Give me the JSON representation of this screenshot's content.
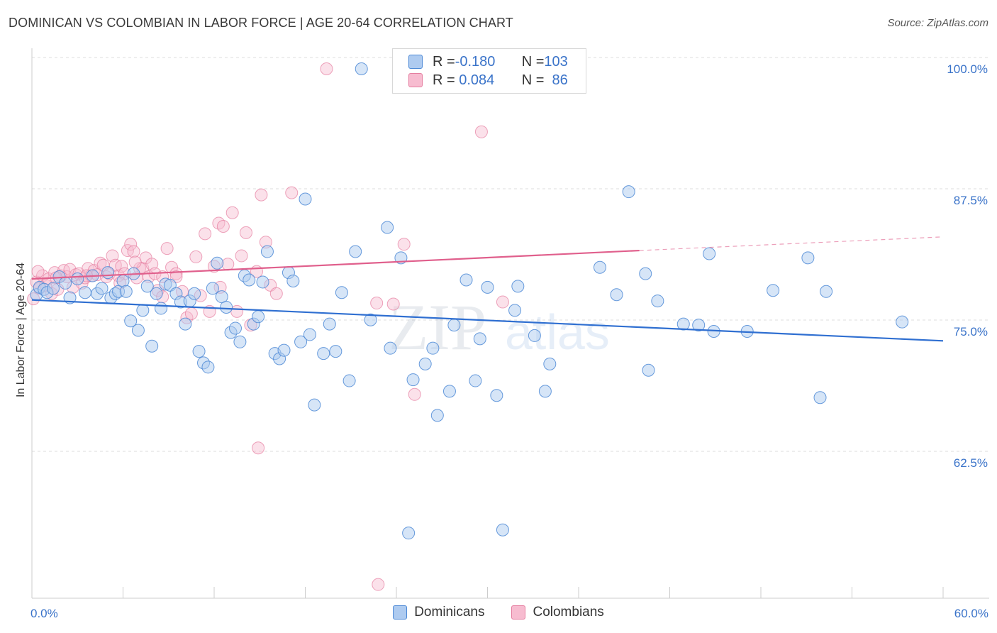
{
  "header": {
    "title": "DOMINICAN VS COLOMBIAN IN LABOR FORCE | AGE 20-64 CORRELATION CHART",
    "source": "Source: ZipAtlas.com"
  },
  "legend": {
    "rows": [
      {
        "r_label": "R = ",
        "r_value": "-0.180",
        "n_label": "N = ",
        "n_value": "103"
      },
      {
        "r_label": "R = ",
        "r_value": " 0.084",
        "n_label": "N = ",
        "n_value": "  86"
      }
    ],
    "bottom": [
      "Dominicans",
      "Colombians"
    ]
  },
  "watermark": {
    "zip": "ZIP",
    "atlas": "atlas"
  },
  "colors": {
    "blue_fill": "#aecbf0",
    "blue_stroke": "#4e8ad6",
    "blue_line": "#2f6fd1",
    "pink_fill": "#f7bcd0",
    "pink_stroke": "#e57ea0",
    "pink_line": "#e05f8c",
    "tick_label": "#3a73c9",
    "grid": "#dddddd"
  },
  "chart_data": {
    "type": "scatter",
    "title": "DOMINICAN VS COLOMBIAN IN LABOR FORCE | AGE 20-64 CORRELATION CHART",
    "xlabel": "",
    "ylabel": "In Labor Force | Age 20-64",
    "xlim": [
      0,
      60
    ],
    "ylim": [
      51,
      102
    ],
    "x_tick_labels": [
      "0.0%",
      "60.0%"
    ],
    "y_ticks": [
      62.5,
      75.0,
      87.5,
      100.0
    ],
    "y_tick_labels": [
      "62.5%",
      "75.0%",
      "87.5%",
      "100.0%"
    ],
    "grid": true,
    "series": [
      {
        "name": "Dominicans",
        "r": -0.18,
        "n": 103,
        "trend": {
          "x": [
            0,
            60
          ],
          "y": [
            78.0,
            74.1
          ]
        },
        "points": [
          [
            0.3,
            78.5
          ],
          [
            0.5,
            79.2
          ],
          [
            0.8,
            79.0
          ],
          [
            1.0,
            78.7
          ],
          [
            1.4,
            79.1
          ],
          [
            1.8,
            80.2
          ],
          [
            2.2,
            79.6
          ],
          [
            2.5,
            78.2
          ],
          [
            3.0,
            80.0
          ],
          [
            3.5,
            78.7
          ],
          [
            4.0,
            80.3
          ],
          [
            4.3,
            78.6
          ],
          [
            4.6,
            79.1
          ],
          [
            5.0,
            80.6
          ],
          [
            5.2,
            78.2
          ],
          [
            5.5,
            78.6
          ],
          [
            5.7,
            78.8
          ],
          [
            6.0,
            79.8
          ],
          [
            6.2,
            78.8
          ],
          [
            6.5,
            76.0
          ],
          [
            6.7,
            80.5
          ],
          [
            7.0,
            75.1
          ],
          [
            7.3,
            77.0
          ],
          [
            7.6,
            79.3
          ],
          [
            7.9,
            73.6
          ],
          [
            8.2,
            78.6
          ],
          [
            8.5,
            77.2
          ],
          [
            8.8,
            79.5
          ],
          [
            9.1,
            79.4
          ],
          [
            9.5,
            78.6
          ],
          [
            9.8,
            77.8
          ],
          [
            10.1,
            75.7
          ],
          [
            10.4,
            77.9
          ],
          [
            10.7,
            78.6
          ],
          [
            11.0,
            73.1
          ],
          [
            11.3,
            72.0
          ],
          [
            11.6,
            71.6
          ],
          [
            11.9,
            79.1
          ],
          [
            12.2,
            81.5
          ],
          [
            12.5,
            78.3
          ],
          [
            12.8,
            77.3
          ],
          [
            13.1,
            74.9
          ],
          [
            13.4,
            75.3
          ],
          [
            13.7,
            74.0
          ],
          [
            14.0,
            80.3
          ],
          [
            14.3,
            79.9
          ],
          [
            14.6,
            75.7
          ],
          [
            14.9,
            76.4
          ],
          [
            15.2,
            79.7
          ],
          [
            15.5,
            82.6
          ],
          [
            16.0,
            72.9
          ],
          [
            16.3,
            72.4
          ],
          [
            16.6,
            73.2
          ],
          [
            16.9,
            80.6
          ],
          [
            17.2,
            79.8
          ],
          [
            17.7,
            74.0
          ],
          [
            18.0,
            87.6
          ],
          [
            18.3,
            74.7
          ],
          [
            18.6,
            68.0
          ],
          [
            19.2,
            72.9
          ],
          [
            19.6,
            75.7
          ],
          [
            20.0,
            73.1
          ],
          [
            20.4,
            78.7
          ],
          [
            20.9,
            70.3
          ],
          [
            21.3,
            82.6
          ],
          [
            21.7,
            100.0
          ],
          [
            22.3,
            76.1
          ],
          [
            23.4,
            84.9
          ],
          [
            23.6,
            73.4
          ],
          [
            24.3,
            82.0
          ],
          [
            24.8,
            55.8
          ],
          [
            25.1,
            70.4
          ],
          [
            25.9,
            71.9
          ],
          [
            26.4,
            73.4
          ],
          [
            26.7,
            67.0
          ],
          [
            27.5,
            69.3
          ],
          [
            27.8,
            75.6
          ],
          [
            28.6,
            79.9
          ],
          [
            29.2,
            70.3
          ],
          [
            29.5,
            74.3
          ],
          [
            30.0,
            79.2
          ],
          [
            30.6,
            68.9
          ],
          [
            31.0,
            56.1
          ],
          [
            31.8,
            77.0
          ],
          [
            32.0,
            79.3
          ],
          [
            33.1,
            74.6
          ],
          [
            33.8,
            69.3
          ],
          [
            34.1,
            71.9
          ],
          [
            37.4,
            81.1
          ],
          [
            38.5,
            78.5
          ],
          [
            39.3,
            88.3
          ],
          [
            40.4,
            80.5
          ],
          [
            40.6,
            71.3
          ],
          [
            41.2,
            77.9
          ],
          [
            42.9,
            75.7
          ],
          [
            43.9,
            75.6
          ],
          [
            44.6,
            82.4
          ],
          [
            44.9,
            75.0
          ],
          [
            47.1,
            75.0
          ],
          [
            48.8,
            78.9
          ],
          [
            51.1,
            82.0
          ],
          [
            51.9,
            68.7
          ],
          [
            52.3,
            78.8
          ],
          [
            57.3,
            75.9
          ]
        ]
      },
      {
        "name": "Colombians",
        "r": 0.084,
        "n": 86,
        "trend": {
          "x": [
            0,
            40
          ],
          "y": [
            80.0,
            82.7
          ]
        },
        "trend_dashed": {
          "x": [
            40,
            60
          ],
          "y": [
            82.7,
            84.0
          ]
        },
        "points": [
          [
            0.1,
            78.1
          ],
          [
            0.3,
            79.7
          ],
          [
            0.5,
            79.1
          ],
          [
            0.7,
            80.3
          ],
          [
            0.9,
            79.4
          ],
          [
            1.1,
            80.0
          ],
          [
            1.3,
            78.6
          ],
          [
            1.5,
            80.6
          ],
          [
            1.7,
            79.0
          ],
          [
            1.9,
            80.3
          ],
          [
            2.1,
            80.8
          ],
          [
            2.3,
            80.2
          ],
          [
            2.5,
            80.9
          ],
          [
            2.7,
            79.2
          ],
          [
            2.9,
            80.4
          ],
          [
            3.1,
            80.5
          ],
          [
            3.3,
            79.6
          ],
          [
            3.5,
            80.1
          ],
          [
            3.7,
            81.0
          ],
          [
            3.9,
            80.3
          ],
          [
            4.1,
            80.8
          ],
          [
            4.3,
            80.4
          ],
          [
            4.5,
            81.5
          ],
          [
            4.7,
            81.3
          ],
          [
            4.9,
            80.2
          ],
          [
            5.1,
            80.5
          ],
          [
            5.3,
            82.2
          ],
          [
            5.5,
            81.3
          ],
          [
            5.7,
            80.3
          ],
          [
            5.9,
            81.2
          ],
          [
            6.1,
            80.5
          ],
          [
            6.3,
            82.7
          ],
          [
            6.5,
            83.3
          ],
          [
            6.7,
            82.6
          ],
          [
            6.9,
            80.1
          ],
          [
            7.1,
            81.0
          ],
          [
            7.3,
            81.0
          ],
          [
            7.5,
            82.0
          ],
          [
            7.7,
            80.2
          ],
          [
            7.9,
            81.4
          ],
          [
            8.1,
            80.5
          ],
          [
            8.3,
            78.9
          ],
          [
            8.6,
            78.3
          ],
          [
            8.9,
            82.9
          ],
          [
            9.2,
            81.1
          ],
          [
            9.5,
            80.5
          ],
          [
            9.9,
            78.8
          ],
          [
            10.2,
            76.3
          ],
          [
            10.5,
            76.7
          ],
          [
            10.8,
            82.1
          ],
          [
            11.1,
            78.4
          ],
          [
            11.4,
            84.3
          ],
          [
            11.7,
            76.9
          ],
          [
            12.0,
            81.2
          ],
          [
            12.3,
            85.3
          ],
          [
            12.6,
            85.0
          ],
          [
            12.9,
            81.4
          ],
          [
            13.2,
            86.3
          ],
          [
            13.5,
            76.9
          ],
          [
            13.8,
            82.2
          ],
          [
            14.1,
            84.4
          ],
          [
            14.4,
            75.6
          ],
          [
            14.8,
            80.7
          ],
          [
            15.1,
            88.0
          ],
          [
            15.4,
            83.5
          ],
          [
            15.7,
            79.4
          ],
          [
            16.1,
            78.6
          ],
          [
            17.1,
            88.2
          ],
          [
            19.4,
            100.0
          ],
          [
            22.7,
            77.7
          ],
          [
            23.8,
            77.6
          ],
          [
            24.5,
            83.3
          ],
          [
            25.2,
            69.0
          ],
          [
            29.6,
            94.0
          ],
          [
            31.0,
            77.8
          ],
          [
            33.6,
            100.0
          ],
          [
            22.8,
            50.9
          ],
          [
            14.9,
            63.9
          ],
          [
            9.5,
            80.2
          ],
          [
            12.4,
            79.2
          ],
          [
            5.8,
            79.6
          ],
          [
            3.6,
            80.3
          ],
          [
            1.6,
            80.1
          ],
          [
            0.4,
            80.7
          ],
          [
            6.8,
            81.6
          ],
          [
            8.6,
            80.2
          ]
        ]
      }
    ]
  }
}
